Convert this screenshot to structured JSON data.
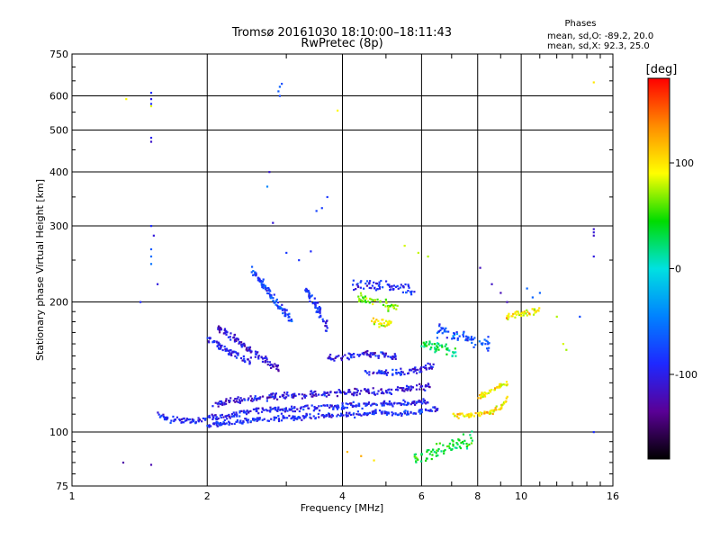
{
  "chart_data": {
    "type": "scatter",
    "title": "Tromsø 20161030 18:10:00–18:11:43",
    "subtitle": "RwPretec (8p)",
    "stats": {
      "heading": "Phases",
      "line1": "mean, sd,O: -89.2, 20.0",
      "line2": "mean, sd,X:  92.3, 25.0"
    },
    "xlabel": "Frequency [MHz]",
    "ylabel": "Stationary phase Virtual Height [km]",
    "xscale": "log",
    "yscale": "log",
    "xlim": [
      1,
      16
    ],
    "ylim": [
      75,
      750
    ],
    "xticks": [
      1,
      2,
      4,
      6,
      8,
      10,
      16
    ],
    "yticks": [
      75,
      100,
      200,
      300,
      400,
      500,
      600,
      750
    ],
    "grid": true,
    "colorbar": {
      "label": "[deg]",
      "range": [
        -180,
        180
      ],
      "ticks": [
        100,
        0,
        -100
      ],
      "colors": [
        "#000000",
        "#5a0096",
        "#1e28ff",
        "#0082ff",
        "#00e1e1",
        "#00dc00",
        "#ffff00",
        "#ff8c00",
        "#ff0000"
      ]
    },
    "traces": [
      {
        "f": [
          1.55,
          1.65,
          1.8,
          1.95,
          2.1,
          2.3,
          2.6,
          3.0,
          3.5,
          4.0,
          4.6,
          5.2,
          5.8,
          6.2
        ],
        "h": [
          110,
          107,
          106,
          107,
          108,
          110,
          112,
          113,
          114,
          115,
          116,
          116,
          117,
          118
        ],
        "phase": -95,
        "spread": 0.025
      },
      {
        "f": [
          2.05,
          2.4,
          2.8,
          3.3,
          3.8,
          4.4,
          5.0,
          5.6,
          6.3
        ],
        "h": [
          116,
          119,
          121,
          122,
          123,
          124,
          124,
          126,
          128
        ],
        "phase": -105,
        "spread": 0.025
      },
      {
        "f": [
          2.0,
          2.4,
          3.0,
          3.6,
          4.2,
          4.8,
          5.3,
          5.8,
          6.5
        ],
        "h": [
          104,
          106,
          108,
          109,
          110,
          111,
          110,
          111,
          113
        ],
        "phase": -90,
        "spread": 0.02
      },
      {
        "f": [
          7.0,
          7.5,
          8.0,
          8.5,
          9.0,
          9.3
        ],
        "h": [
          110,
          109,
          110,
          111,
          114,
          120
        ],
        "phase": 100,
        "spread": 0.02
      },
      {
        "f": [
          8.0,
          8.6,
          9.0,
          9.3
        ],
        "h": [
          120,
          125,
          128,
          130
        ],
        "phase": 95,
        "spread": 0.02
      },
      {
        "f": [
          2.0,
          2.2,
          2.5
        ],
        "h": [
          165,
          155,
          145
        ],
        "phase": -95,
        "spread": 0.03
      },
      {
        "f": [
          2.1,
          2.3,
          2.6,
          2.9
        ],
        "h": [
          175,
          165,
          150,
          140
        ],
        "phase": -110,
        "spread": 0.03
      },
      {
        "f": [
          2.5,
          2.7,
          2.9,
          3.1
        ],
        "h": [
          240,
          215,
          195,
          180
        ],
        "phase": -75,
        "spread": 0.035
      },
      {
        "f": [
          3.3,
          3.5,
          3.7
        ],
        "h": [
          215,
          195,
          175
        ],
        "phase": -90,
        "spread": 0.04
      },
      {
        "f": [
          3.7,
          4.2,
          4.8,
          5.3
        ],
        "h": [
          148,
          150,
          152,
          148
        ],
        "phase": -100,
        "spread": 0.025
      },
      {
        "f": [
          4.5,
          5.0,
          5.5,
          6.0,
          6.4
        ],
        "h": [
          138,
          137,
          138,
          140,
          142
        ],
        "phase": -95,
        "spread": 0.025
      },
      {
        "f": [
          4.6,
          4.9,
          5.2
        ],
        "h": [
          180,
          178,
          180
        ],
        "phase": 95,
        "spread": 0.03
      },
      {
        "f": [
          4.3,
          4.8,
          5.3
        ],
        "h": [
          205,
          200,
          195
        ],
        "phase": 70,
        "spread": 0.04
      },
      {
        "f": [
          6.0,
          6.4,
          6.8,
          7.2
        ],
        "h": [
          160,
          158,
          155,
          152
        ],
        "phase": 30,
        "spread": 0.05
      },
      {
        "f": [
          9.2,
          9.6,
          10.0,
          10.5,
          11.0
        ],
        "h": [
          185,
          186,
          188,
          190,
          192
        ],
        "phase": 95,
        "spread": 0.03
      },
      {
        "f": [
          4.2,
          4.6,
          5.0,
          5.4,
          5.8
        ],
        "h": [
          218,
          220,
          218,
          215,
          212
        ],
        "phase": -90,
        "spread": 0.045
      },
      {
        "f": [
          6.5,
          7.0,
          7.5,
          8.0,
          8.5
        ],
        "h": [
          172,
          168,
          165,
          162,
          160
        ],
        "phase": -70,
        "spread": 0.05
      },
      {
        "f": [
          5.8,
          6.3,
          6.8,
          7.3,
          7.8
        ],
        "h": [
          88,
          90,
          92,
          94,
          96
        ],
        "phase": 40,
        "spread": 0.06
      }
    ],
    "scatter": [
      {
        "f": [
          1.5,
          1.5,
          1.5,
          1.5,
          1.5,
          1.42,
          1.55,
          1.5,
          1.52
        ],
        "h": [
          610,
          590,
          575,
          480,
          470,
          200,
          220,
          300,
          285
        ],
        "phase": -100
      },
      {
        "f": [
          1.32,
          1.5
        ],
        "h": [
          590,
          568
        ],
        "phase": 90
      },
      {
        "f": [
          1.3,
          1.5
        ],
        "h": [
          85,
          84
        ],
        "phase": -120
      },
      {
        "f": [
          1.5,
          1.5,
          1.5
        ],
        "h": [
          265,
          255,
          245
        ],
        "phase": -60
      },
      {
        "f": [
          2.9,
          2.88,
          2.93,
          2.9
        ],
        "h": [
          630,
          615,
          640,
          600
        ],
        "phase": -70
      },
      {
        "f": [
          2.75,
          2.8
        ],
        "h": [
          400,
          305
        ],
        "phase": -110
      },
      {
        "f": [
          2.72
        ],
        "h": [
          370
        ],
        "phase": -60
      },
      {
        "f": [
          3.7,
          3.6,
          3.5
        ],
        "h": [
          350,
          330,
          325
        ],
        "phase": -80
      },
      {
        "f": [
          3.9
        ],
        "h": [
          555
        ],
        "phase": 100
      },
      {
        "f": [
          14.5,
          14.5,
          14.5,
          14.5
        ],
        "h": [
          295,
          290,
          285,
          255
        ],
        "phase": -110
      },
      {
        "f": [
          14.5
        ],
        "h": [
          645
        ],
        "phase": 100
      },
      {
        "f": [
          14.5,
          13.5
        ],
        "h": [
          100,
          185
        ],
        "phase": -80
      },
      {
        "f": [
          8.1,
          8.6,
          9.0,
          9.3
        ],
        "h": [
          240,
          220,
          210,
          200
        ],
        "phase": -120
      },
      {
        "f": [
          10.3,
          10.6,
          11.0
        ],
        "h": [
          215,
          205,
          210
        ],
        "phase": -60
      },
      {
        "f": [
          12.0,
          12.4,
          12.6
        ],
        "h": [
          185,
          160,
          155
        ],
        "phase": 80
      },
      {
        "f": [
          4.1,
          4.4,
          4.7
        ],
        "h": [
          90,
          88,
          86
        ],
        "phase": 110
      },
      {
        "f": [
          5.5,
          5.9,
          6.2
        ],
        "h": [
          270,
          260,
          255
        ],
        "phase": 80
      },
      {
        "f": [
          3.0,
          3.2,
          3.4
        ],
        "h": [
          260,
          250,
          262
        ],
        "phase": -90
      }
    ]
  }
}
